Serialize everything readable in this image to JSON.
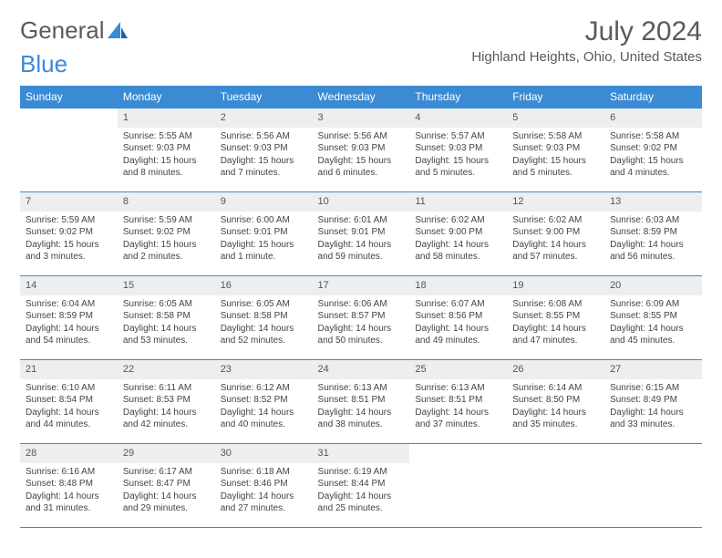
{
  "logo": {
    "word1": "General",
    "word2": "Blue"
  },
  "title": "July 2024",
  "location": "Highland Heights, Ohio, United States",
  "colors": {
    "header_bg": "#3b8bd4",
    "header_text": "#ffffff",
    "daynum_bg": "#eceeef",
    "text": "#444444",
    "title_color": "#5a5a5a",
    "border": "#3b8bd4"
  },
  "weekdays": [
    "Sunday",
    "Monday",
    "Tuesday",
    "Wednesday",
    "Thursday",
    "Friday",
    "Saturday"
  ],
  "weeks": [
    [
      null,
      {
        "n": "1",
        "sr": "Sunrise: 5:55 AM",
        "ss": "Sunset: 9:03 PM",
        "d1": "Daylight: 15 hours",
        "d2": "and 8 minutes."
      },
      {
        "n": "2",
        "sr": "Sunrise: 5:56 AM",
        "ss": "Sunset: 9:03 PM",
        "d1": "Daylight: 15 hours",
        "d2": "and 7 minutes."
      },
      {
        "n": "3",
        "sr": "Sunrise: 5:56 AM",
        "ss": "Sunset: 9:03 PM",
        "d1": "Daylight: 15 hours",
        "d2": "and 6 minutes."
      },
      {
        "n": "4",
        "sr": "Sunrise: 5:57 AM",
        "ss": "Sunset: 9:03 PM",
        "d1": "Daylight: 15 hours",
        "d2": "and 5 minutes."
      },
      {
        "n": "5",
        "sr": "Sunrise: 5:58 AM",
        "ss": "Sunset: 9:03 PM",
        "d1": "Daylight: 15 hours",
        "d2": "and 5 minutes."
      },
      {
        "n": "6",
        "sr": "Sunrise: 5:58 AM",
        "ss": "Sunset: 9:02 PM",
        "d1": "Daylight: 15 hours",
        "d2": "and 4 minutes."
      }
    ],
    [
      {
        "n": "7",
        "sr": "Sunrise: 5:59 AM",
        "ss": "Sunset: 9:02 PM",
        "d1": "Daylight: 15 hours",
        "d2": "and 3 minutes."
      },
      {
        "n": "8",
        "sr": "Sunrise: 5:59 AM",
        "ss": "Sunset: 9:02 PM",
        "d1": "Daylight: 15 hours",
        "d2": "and 2 minutes."
      },
      {
        "n": "9",
        "sr": "Sunrise: 6:00 AM",
        "ss": "Sunset: 9:01 PM",
        "d1": "Daylight: 15 hours",
        "d2": "and 1 minute."
      },
      {
        "n": "10",
        "sr": "Sunrise: 6:01 AM",
        "ss": "Sunset: 9:01 PM",
        "d1": "Daylight: 14 hours",
        "d2": "and 59 minutes."
      },
      {
        "n": "11",
        "sr": "Sunrise: 6:02 AM",
        "ss": "Sunset: 9:00 PM",
        "d1": "Daylight: 14 hours",
        "d2": "and 58 minutes."
      },
      {
        "n": "12",
        "sr": "Sunrise: 6:02 AM",
        "ss": "Sunset: 9:00 PM",
        "d1": "Daylight: 14 hours",
        "d2": "and 57 minutes."
      },
      {
        "n": "13",
        "sr": "Sunrise: 6:03 AM",
        "ss": "Sunset: 8:59 PM",
        "d1": "Daylight: 14 hours",
        "d2": "and 56 minutes."
      }
    ],
    [
      {
        "n": "14",
        "sr": "Sunrise: 6:04 AM",
        "ss": "Sunset: 8:59 PM",
        "d1": "Daylight: 14 hours",
        "d2": "and 54 minutes."
      },
      {
        "n": "15",
        "sr": "Sunrise: 6:05 AM",
        "ss": "Sunset: 8:58 PM",
        "d1": "Daylight: 14 hours",
        "d2": "and 53 minutes."
      },
      {
        "n": "16",
        "sr": "Sunrise: 6:05 AM",
        "ss": "Sunset: 8:58 PM",
        "d1": "Daylight: 14 hours",
        "d2": "and 52 minutes."
      },
      {
        "n": "17",
        "sr": "Sunrise: 6:06 AM",
        "ss": "Sunset: 8:57 PM",
        "d1": "Daylight: 14 hours",
        "d2": "and 50 minutes."
      },
      {
        "n": "18",
        "sr": "Sunrise: 6:07 AM",
        "ss": "Sunset: 8:56 PM",
        "d1": "Daylight: 14 hours",
        "d2": "and 49 minutes."
      },
      {
        "n": "19",
        "sr": "Sunrise: 6:08 AM",
        "ss": "Sunset: 8:55 PM",
        "d1": "Daylight: 14 hours",
        "d2": "and 47 minutes."
      },
      {
        "n": "20",
        "sr": "Sunrise: 6:09 AM",
        "ss": "Sunset: 8:55 PM",
        "d1": "Daylight: 14 hours",
        "d2": "and 45 minutes."
      }
    ],
    [
      {
        "n": "21",
        "sr": "Sunrise: 6:10 AM",
        "ss": "Sunset: 8:54 PM",
        "d1": "Daylight: 14 hours",
        "d2": "and 44 minutes."
      },
      {
        "n": "22",
        "sr": "Sunrise: 6:11 AM",
        "ss": "Sunset: 8:53 PM",
        "d1": "Daylight: 14 hours",
        "d2": "and 42 minutes."
      },
      {
        "n": "23",
        "sr": "Sunrise: 6:12 AM",
        "ss": "Sunset: 8:52 PM",
        "d1": "Daylight: 14 hours",
        "d2": "and 40 minutes."
      },
      {
        "n": "24",
        "sr": "Sunrise: 6:13 AM",
        "ss": "Sunset: 8:51 PM",
        "d1": "Daylight: 14 hours",
        "d2": "and 38 minutes."
      },
      {
        "n": "25",
        "sr": "Sunrise: 6:13 AM",
        "ss": "Sunset: 8:51 PM",
        "d1": "Daylight: 14 hours",
        "d2": "and 37 minutes."
      },
      {
        "n": "26",
        "sr": "Sunrise: 6:14 AM",
        "ss": "Sunset: 8:50 PM",
        "d1": "Daylight: 14 hours",
        "d2": "and 35 minutes."
      },
      {
        "n": "27",
        "sr": "Sunrise: 6:15 AM",
        "ss": "Sunset: 8:49 PM",
        "d1": "Daylight: 14 hours",
        "d2": "and 33 minutes."
      }
    ],
    [
      {
        "n": "28",
        "sr": "Sunrise: 6:16 AM",
        "ss": "Sunset: 8:48 PM",
        "d1": "Daylight: 14 hours",
        "d2": "and 31 minutes."
      },
      {
        "n": "29",
        "sr": "Sunrise: 6:17 AM",
        "ss": "Sunset: 8:47 PM",
        "d1": "Daylight: 14 hours",
        "d2": "and 29 minutes."
      },
      {
        "n": "30",
        "sr": "Sunrise: 6:18 AM",
        "ss": "Sunset: 8:46 PM",
        "d1": "Daylight: 14 hours",
        "d2": "and 27 minutes."
      },
      {
        "n": "31",
        "sr": "Sunrise: 6:19 AM",
        "ss": "Sunset: 8:44 PM",
        "d1": "Daylight: 14 hours",
        "d2": "and 25 minutes."
      },
      null,
      null,
      null
    ]
  ]
}
